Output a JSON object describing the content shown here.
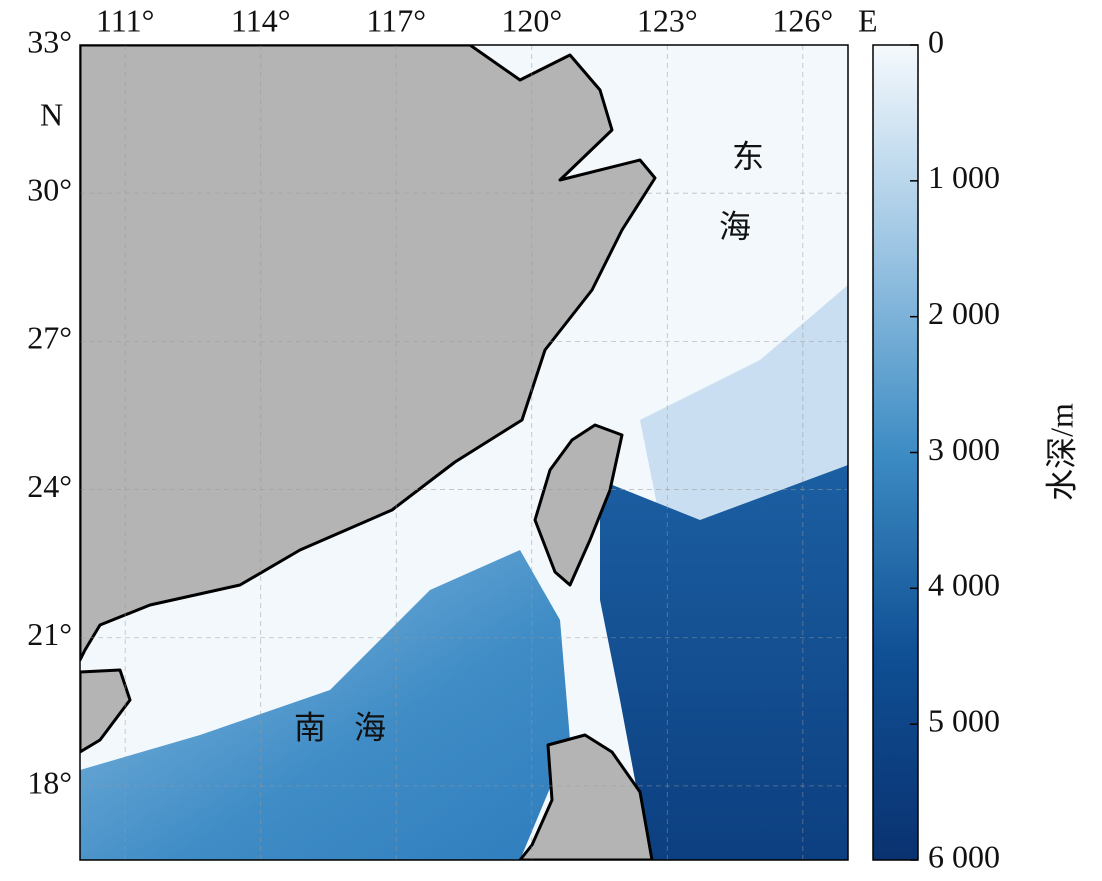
{
  "map": {
    "xlim": [
      110,
      127
    ],
    "ylim": [
      16.5,
      33
    ],
    "xticks": [
      {
        "value": 111,
        "label": "111°"
      },
      {
        "value": 114,
        "label": "114°"
      },
      {
        "value": 117,
        "label": "117°"
      },
      {
        "value": 120,
        "label": "120°"
      },
      {
        "value": 123,
        "label": "123°"
      },
      {
        "value": 126,
        "label": "126°"
      }
    ],
    "yticks": [
      {
        "value": 18,
        "label": "18°"
      },
      {
        "value": 21,
        "label": "21°"
      },
      {
        "value": 24,
        "label": "24°"
      },
      {
        "value": 27,
        "label": "27°"
      },
      {
        "value": 30,
        "label": "30°"
      },
      {
        "value": 33,
        "label": "33°"
      }
    ],
    "lon_hemisphere": "E",
    "lat_hemisphere": "N",
    "grid": true,
    "east_sea": [
      "东",
      "海"
    ],
    "south_sea": [
      "南",
      "海"
    ],
    "colorbar": {
      "label": "水深/m",
      "lim": [
        0,
        6000
      ],
      "ticks": [
        0,
        {
          "value": 1000,
          "label": "1 000"
        },
        {
          "value": 2000,
          "label": "2 000"
        },
        {
          "value": 3000,
          "label": "3 000"
        },
        {
          "value": 4000,
          "label": "4 000"
        },
        {
          "value": 5000,
          "label": "5 000"
        },
        {
          "value": 6000,
          "label": "6 000"
        }
      ],
      "colors": [
        "#f5f9fd",
        "#9cc5e3",
        "#3d8cc4",
        "#0f4f94",
        "#0a3270"
      ]
    }
  }
}
